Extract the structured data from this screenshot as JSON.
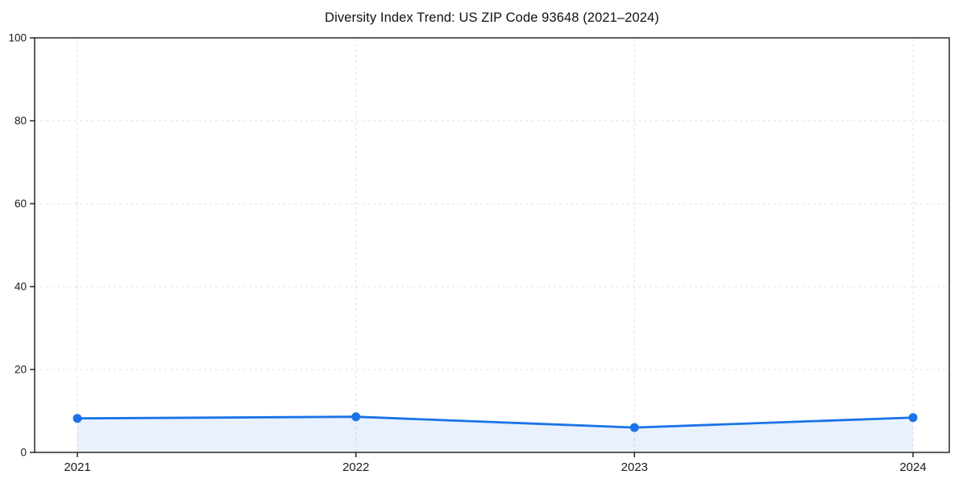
{
  "page": {
    "background": "#ffffff"
  },
  "chart_data": {
    "type": "line",
    "title": "Diversity Index Trend: US ZIP Code 93648 (2021–2024)",
    "categories": [
      "2021",
      "2022",
      "2023",
      "2024"
    ],
    "series": [
      {
        "name": "Diversity Index",
        "values": [
          8.2,
          8.6,
          6.0,
          8.4
        ]
      }
    ],
    "xlabel": "",
    "ylabel": "",
    "ylim": [
      0,
      100
    ],
    "yticks": [
      0,
      20,
      40,
      60,
      80,
      100
    ],
    "grid": true,
    "grid_style": "dashed",
    "legend_position": "none",
    "marker": "circle",
    "colors": {
      "line": "#1a73e8",
      "marker": "#1a73e8",
      "area_fill": "#1a73e8",
      "area_opacity": 0.1,
      "gridline": "#e2e2e2",
      "axis": "#1a1a1a",
      "text": "#1a1a1a"
    }
  }
}
